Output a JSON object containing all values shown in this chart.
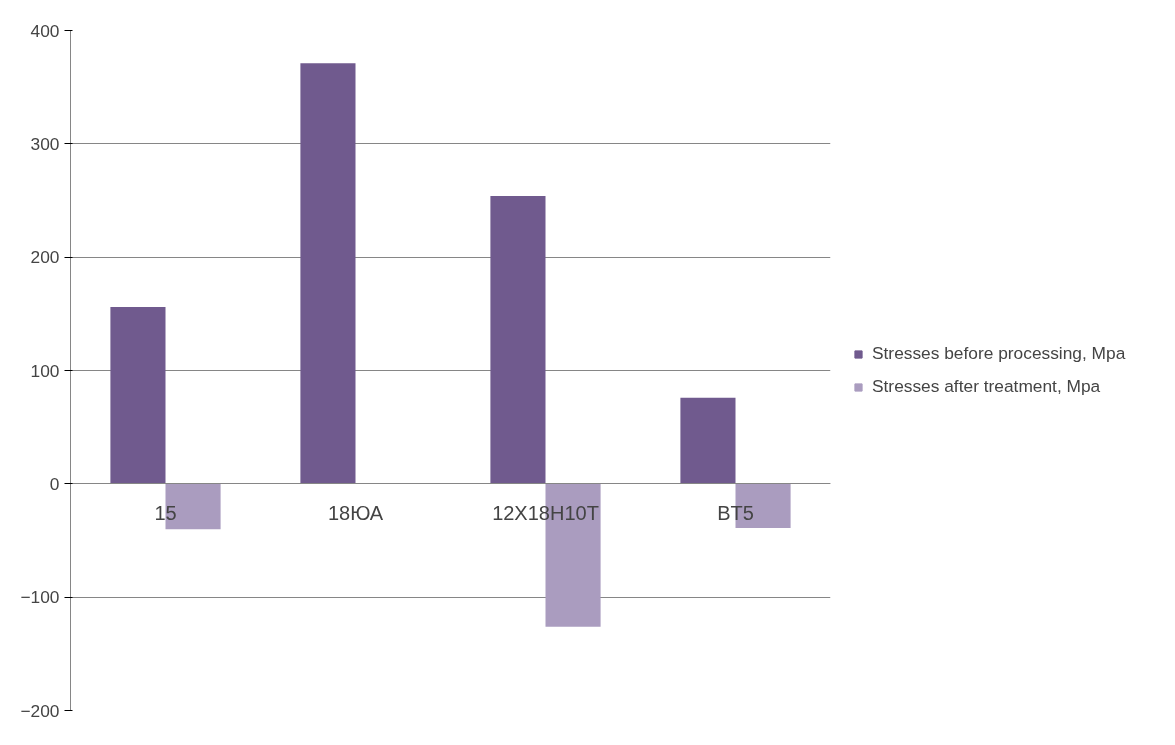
{
  "chart_data": {
    "type": "bar",
    "categories": [
      "15",
      "18ЮА",
      "12X18H10T",
      "BT5"
    ],
    "series": [
      {
        "name": "Stresses before processing, Mpa",
        "color": "#705a8e",
        "values": [
          156,
          371,
          254,
          76
        ]
      },
      {
        "name": "Stresses after treatment, Mpa",
        "color": "#aa9cbf",
        "values": [
          -40,
          null,
          -126,
          -39
        ]
      }
    ],
    "ylim": [
      -200,
      400
    ],
    "yticks": [
      -200,
      -100,
      0,
      100,
      200,
      300,
      400
    ],
    "grid": "y",
    "legend": "right"
  }
}
